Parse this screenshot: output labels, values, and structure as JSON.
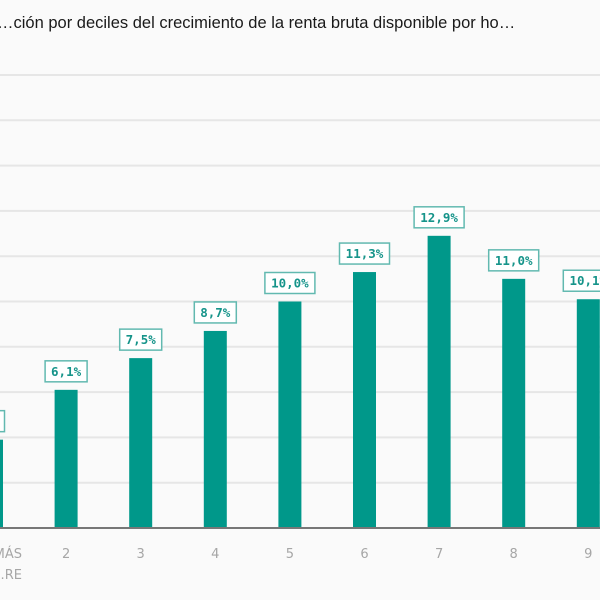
{
  "chart_data": {
    "type": "bar",
    "title": "…ción por deciles del crecimiento de la renta bruta disponible por ho…",
    "xlabel": "",
    "ylabel": "",
    "ylim": [
      0,
      20
    ],
    "y_grid_step": 2,
    "grid": true,
    "categories": [
      [
        "MÁS",
        "…RE"
      ],
      [
        "2"
      ],
      [
        "3"
      ],
      [
        "4"
      ],
      [
        "5"
      ],
      [
        "6"
      ],
      [
        "7"
      ],
      [
        "8"
      ],
      [
        "9"
      ]
    ],
    "values": [
      3.9,
      6.1,
      7.5,
      8.7,
      10.0,
      11.3,
      12.9,
      11.0,
      10.1
    ],
    "data_labels": [
      "…%",
      "6,1%",
      "7,5%",
      "8,7%",
      "10,0%",
      "11,3%",
      "12,9%",
      "11,0%",
      "10,1%"
    ],
    "colors": {
      "bar": "#00988a",
      "label": "#16948a",
      "label_border": "#62b9b0"
    }
  }
}
